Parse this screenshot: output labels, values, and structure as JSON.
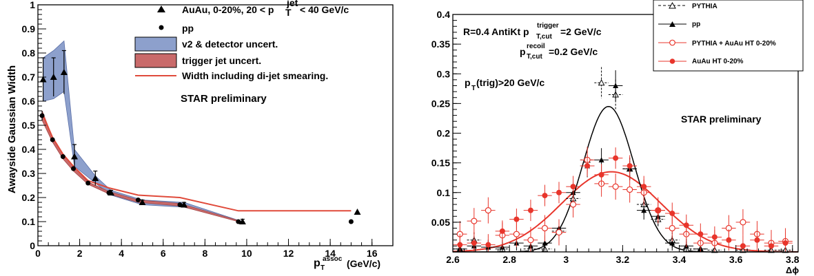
{
  "chart_data": [
    {
      "type": "scatter",
      "ylabel": "Awayside Gaussian Width",
      "xlabel_main": "p",
      "xlabel_sub": "T",
      "xlabel_sup": "assoc",
      "xlabel_unit": "(GeV/c)",
      "xlim": [
        0,
        17
      ],
      "ylim": [
        0,
        1
      ],
      "xticks": [
        0,
        2,
        4,
        6,
        8,
        10,
        12,
        14,
        16
      ],
      "yticks": [
        0,
        0.1,
        0.2,
        0.3,
        0.4,
        0.5,
        0.6,
        0.7,
        0.8,
        0.9,
        1
      ],
      "ytick_labels": [
        "0",
        "0.1",
        "0.2",
        "0.3",
        "0.4",
        "0.5",
        "0.6",
        "0.7",
        "0.8",
        "0.9",
        "1"
      ],
      "annotation": "STAR preliminary",
      "legend": {
        "auau_pre": "AuAu, 0-20%, 20 < p",
        "auau_sub": "T",
        "auau_sup": "jet",
        "auau_post": "< 40 GeV/c",
        "pp": "pp",
        "v2": "v2 & detector uncert.",
        "trigger": "trigger jet uncert.",
        "width": "Width including di-jet smearing."
      },
      "colors": {
        "v2_band": "#8da0cc",
        "v2_edge": "#5a6fa8",
        "trigger_band": "#c96a6a",
        "width_line": "#e04a3a"
      },
      "auau": [
        {
          "x": 0.25,
          "y": 0.69,
          "err": 0.09
        },
        {
          "x": 0.75,
          "y": 0.7,
          "err": 0.08
        },
        {
          "x": 1.25,
          "y": 0.72,
          "err": 0.09
        },
        {
          "x": 1.75,
          "y": 0.37,
          "err": 0.05
        },
        {
          "x": 2.75,
          "y": 0.28,
          "err": 0.03
        },
        {
          "x": 3.5,
          "y": 0.22,
          "err": 0.01
        },
        {
          "x": 5.0,
          "y": 0.18,
          "err": 0.01
        },
        {
          "x": 7.0,
          "y": 0.17,
          "err": 0.01
        },
        {
          "x": 9.8,
          "y": 0.1,
          "err": 0.01
        },
        {
          "x": 15.3,
          "y": 0.14,
          "err": 0.0
        }
      ],
      "pp": [
        {
          "x": 0.2,
          "y": 0.54,
          "err": 0.02
        },
        {
          "x": 0.7,
          "y": 0.44,
          "err": 0.01
        },
        {
          "x": 1.2,
          "y": 0.37,
          "err": 0.01
        },
        {
          "x": 1.7,
          "y": 0.32,
          "err": 0.01
        },
        {
          "x": 2.4,
          "y": 0.26,
          "err": 0.0
        },
        {
          "x": 3.4,
          "y": 0.22,
          "err": 0.0
        },
        {
          "x": 4.8,
          "y": 0.19,
          "err": 0.0
        },
        {
          "x": 6.8,
          "y": 0.17,
          "err": 0.0
        },
        {
          "x": 9.6,
          "y": 0.1,
          "err": 0.0
        },
        {
          "x": 15.0,
          "y": 0.1,
          "err": 0.0
        }
      ],
      "v2_band": {
        "x": [
          0.25,
          0.75,
          1.25,
          1.75,
          2.75,
          3.5,
          5.0,
          7.0,
          9.8
        ],
        "low": [
          0.6,
          0.61,
          0.64,
          0.33,
          0.26,
          0.21,
          0.17,
          0.16,
          0.1
        ],
        "high": [
          0.78,
          0.81,
          0.85,
          0.4,
          0.29,
          0.23,
          0.19,
          0.18,
          0.1
        ]
      },
      "trigger_band": {
        "x": [
          0.2,
          0.7,
          1.2,
          1.7,
          2.4,
          3.4,
          4.8,
          6.8,
          9.6
        ],
        "low": [
          0.52,
          0.43,
          0.36,
          0.31,
          0.255,
          0.215,
          0.18,
          0.165,
          0.1
        ],
        "high": [
          0.56,
          0.45,
          0.38,
          0.33,
          0.265,
          0.225,
          0.19,
          0.175,
          0.105
        ]
      },
      "width_line": {
        "x": [
          0.2,
          0.7,
          1.2,
          1.7,
          2.4,
          3.4,
          4.8,
          6.8,
          9.6,
          15.0
        ],
        "y": [
          0.55,
          0.45,
          0.38,
          0.33,
          0.27,
          0.24,
          0.21,
          0.2,
          0.145,
          0.145
        ]
      }
    },
    {
      "type": "scatter",
      "xlabel": "Δϕ",
      "xlim": [
        2.6,
        3.82
      ],
      "ylim": [
        0,
        0.4
      ],
      "xticks": [
        2.6,
        2.8,
        3.0,
        3.2,
        3.4,
        3.6,
        3.8
      ],
      "xtick_labels": [
        "2.6",
        "2.8",
        "3",
        "3.2",
        "3.4",
        "3.6",
        "3.8"
      ],
      "yticks": [
        0.05,
        0.1,
        0.15,
        0.2,
        0.25,
        0.3,
        0.35,
        0.4
      ],
      "ytick_labels": [
        "0.05",
        "0.1",
        "0.15",
        "0.2",
        "0.25",
        "0.3",
        "0.35",
        "0.4"
      ],
      "annotations": {
        "line1_pre": "R=0.4 AntiKt p",
        "line1_sup": "trigger",
        "line1_sub": "T,cut",
        "line1_post": "=2 GeV/c",
        "line2_pre": "p",
        "line2_sup": "recoil",
        "line2_sub": "T,cut",
        "line2_post": "=0.2 GeV/c",
        "line3_pre": "p",
        "line3_sub": "T",
        "line3_post": "(trig)>20 GeV/c",
        "star": "STAR preliminary"
      },
      "legend": [
        "PYTHIA",
        "pp",
        "PYTHIA + AuAu HT 0-20%",
        "AuAu HT 0-20%"
      ],
      "colors": {
        "red": "#e8352b",
        "black": "#000000"
      },
      "series": [
        {
          "name": "PYTHIA",
          "x": [
            2.625,
            2.675,
            2.775,
            2.875,
            2.925,
            2.975,
            3.025,
            3.075,
            3.125,
            3.175,
            3.225,
            3.275,
            3.325,
            3.375,
            3.425,
            3.475,
            3.525,
            3.625,
            3.725,
            3.775
          ],
          "y": [
            0.005,
            0.02,
            0.005,
            0.005,
            0.005,
            0.035,
            0.09,
            0.155,
            0.285,
            0.265,
            0.14,
            0.08,
            0.055,
            0.02,
            0.005,
            0.005,
            0.003,
            0.003,
            0.003,
            0.003
          ]
        },
        {
          "name": "pp",
          "x": [
            2.625,
            2.675,
            2.725,
            2.775,
            2.825,
            2.875,
            2.925,
            2.975,
            3.025,
            3.075,
            3.125,
            3.175,
            3.225,
            3.275,
            3.325,
            3.375,
            3.425,
            3.475
          ],
          "y": [
            0.005,
            0.01,
            0.008,
            0.008,
            0.015,
            0.01,
            0.015,
            0.04,
            0.1,
            0.145,
            0.155,
            0.28,
            0.14,
            0.07,
            0.06,
            0.015,
            0.01,
            0.005
          ]
        },
        {
          "name": "PYTHIA + AuAu HT 0-20%",
          "x": [
            2.625,
            2.675,
            2.725,
            2.775,
            2.825,
            2.875,
            2.925,
            2.975,
            3.025,
            3.075,
            3.125,
            3.175,
            3.225,
            3.275,
            3.325,
            3.375,
            3.425,
            3.475,
            3.525,
            3.575,
            3.625,
            3.675,
            3.725,
            3.775
          ],
          "y": [
            0.03,
            0.052,
            0.07,
            0.028,
            0.03,
            0.02,
            0.04,
            0.033,
            0.08,
            0.155,
            0.115,
            0.11,
            0.105,
            0.1,
            0.07,
            0.04,
            0.03,
            0.015,
            0.015,
            0.04,
            0.05,
            0.03,
            0.015,
            0.018
          ]
        },
        {
          "name": "AuAu HT 0-20%",
          "x": [
            2.625,
            2.675,
            2.725,
            2.775,
            2.825,
            2.875,
            2.925,
            2.975,
            3.025,
            3.075,
            3.125,
            3.175,
            3.225,
            3.275,
            3.325,
            3.375,
            3.425,
            3.475,
            3.525,
            3.575,
            3.625,
            3.675,
            3.725,
            3.775
          ],
          "y": [
            0.012,
            0.015,
            0.012,
            0.035,
            0.055,
            0.07,
            0.095,
            0.1,
            0.11,
            0.145,
            0.13,
            0.158,
            0.145,
            0.11,
            0.07,
            0.065,
            0.045,
            0.03,
            0.025,
            0.02,
            0.01,
            0.02,
            0.01,
            0.015
          ]
        }
      ],
      "curves": {
        "pp_fit": {
          "amplitude": 0.245,
          "mean": 3.15,
          "sigma": 0.09
        },
        "auau_fit": {
          "amplitude": 0.135,
          "mean": 3.16,
          "sigma": 0.175
        }
      }
    }
  ]
}
